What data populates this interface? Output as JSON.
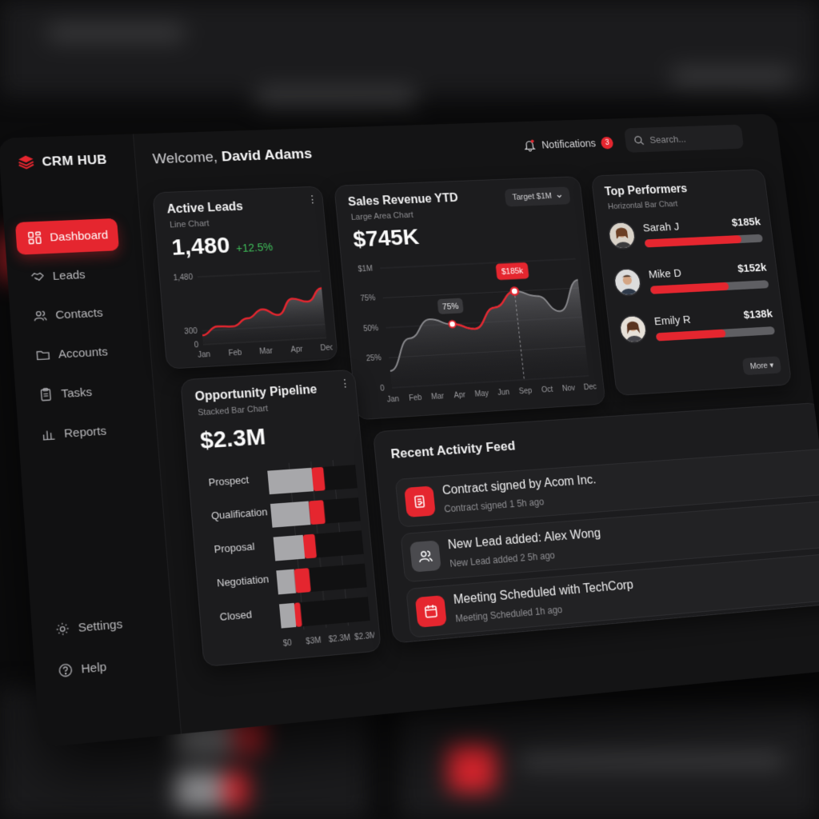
{
  "brand": {
    "name": "CRM HUB"
  },
  "header": {
    "welcome_prefix": "Welcome,",
    "user_name": "David Adams"
  },
  "notifications": {
    "label": "Notifications",
    "count": "3"
  },
  "search": {
    "placeholder": "Search..."
  },
  "sidebar": {
    "items": [
      {
        "label": "Dashboard",
        "icon": "grid-icon",
        "active": true
      },
      {
        "label": "Leads",
        "icon": "handshake-icon"
      },
      {
        "label": "Contacts",
        "icon": "users-icon"
      },
      {
        "label": "Accounts",
        "icon": "folder-icon"
      },
      {
        "label": "Tasks",
        "icon": "clipboard-icon"
      },
      {
        "label": "Reports",
        "icon": "bar-chart-icon"
      }
    ],
    "bottom": [
      {
        "label": "Settings",
        "icon": "gear-icon"
      },
      {
        "label": "Help",
        "icon": "help-icon"
      }
    ]
  },
  "active_leads": {
    "title": "Active Leads",
    "subtitle": "Line Chart",
    "value": "1,480",
    "delta": "+12.5%"
  },
  "sales_revenue": {
    "title": "Sales Revenue YTD",
    "subtitle": "Large Area Chart",
    "value": "$745K",
    "target_label": "Target $1M",
    "peak_label": "$185k",
    "mid_label": "75%"
  },
  "top_performers": {
    "title": "Top Performers",
    "subtitle": "Horizontal Bar Chart",
    "people": [
      {
        "name": "Sarah J",
        "value": "$185k",
        "progress": 0.82
      },
      {
        "name": "Mike D",
        "value": "$152k",
        "progress": 0.66
      },
      {
        "name": "Emily R",
        "value": "$138k",
        "progress": 0.58
      }
    ],
    "more_label": "More"
  },
  "pipeline": {
    "title": "Opportunity Pipeline",
    "subtitle": "Stacked Bar Chart",
    "value": "$2.3M"
  },
  "activity": {
    "title": "Recent Activity Feed",
    "items": [
      {
        "title": "Contract signed by Acom Inc.",
        "sub": "Contract signed 1 5h ago",
        "icon": "contract-icon",
        "color": "#e5262f"
      },
      {
        "title": "New Lead added: Alex Wong",
        "sub": "New Lead added 2 5h ago",
        "icon": "users-icon",
        "color": "#4a4a4e"
      },
      {
        "title": "Meeting Scheduled with TechCorp",
        "sub": "Meeting Scheduled 1h ago",
        "icon": "calendar-icon",
        "color": "#e5262f"
      }
    ]
  },
  "chart_data": [
    {
      "type": "area",
      "title": "Active Leads",
      "categories": [
        "Jan",
        "Feb",
        "Mar",
        "Apr",
        "Dec"
      ],
      "y_ticks": [
        "0",
        "300",
        "1,480"
      ],
      "ylim": [
        0,
        1480
      ],
      "x": [
        0,
        0.5,
        1,
        1.5,
        2,
        2.5,
        3,
        3.5,
        4
      ],
      "values": [
        200,
        380,
        360,
        520,
        700,
        560,
        900,
        820,
        1100
      ]
    },
    {
      "type": "area",
      "title": "Sales Revenue YTD",
      "categories": [
        "Jan",
        "Feb",
        "Mar",
        "Apr",
        "May",
        "Jun",
        "Sep",
        "Oct",
        "Nov",
        "Dec"
      ],
      "y_ticks": [
        "0",
        "25%",
        "50%",
        "75%",
        "$1M"
      ],
      "ylim": [
        0,
        100
      ],
      "x": [
        0,
        1,
        2,
        3,
        4,
        5,
        6,
        7,
        8,
        9
      ],
      "values": [
        14,
        40,
        55,
        50,
        45,
        62,
        75,
        70,
        56,
        82
      ]
    },
    {
      "type": "bar",
      "title": "Opportunity Pipeline",
      "orientation": "horizontal",
      "stacked": true,
      "categories": [
        "Prospect",
        "Qualification",
        "Proposal",
        "Negotiation",
        "Closed"
      ],
      "series": [
        {
          "values": [
            1.5,
            1.3,
            1.0,
            0.6,
            0.5
          ]
        },
        {
          "values": [
            0.4,
            0.5,
            0.4,
            0.5,
            0.2
          ]
        }
      ],
      "x_ticks": [
        "$0",
        "$3M",
        "$2.3M",
        "$2.3M"
      ],
      "xlim": [
        0,
        3
      ]
    }
  ]
}
